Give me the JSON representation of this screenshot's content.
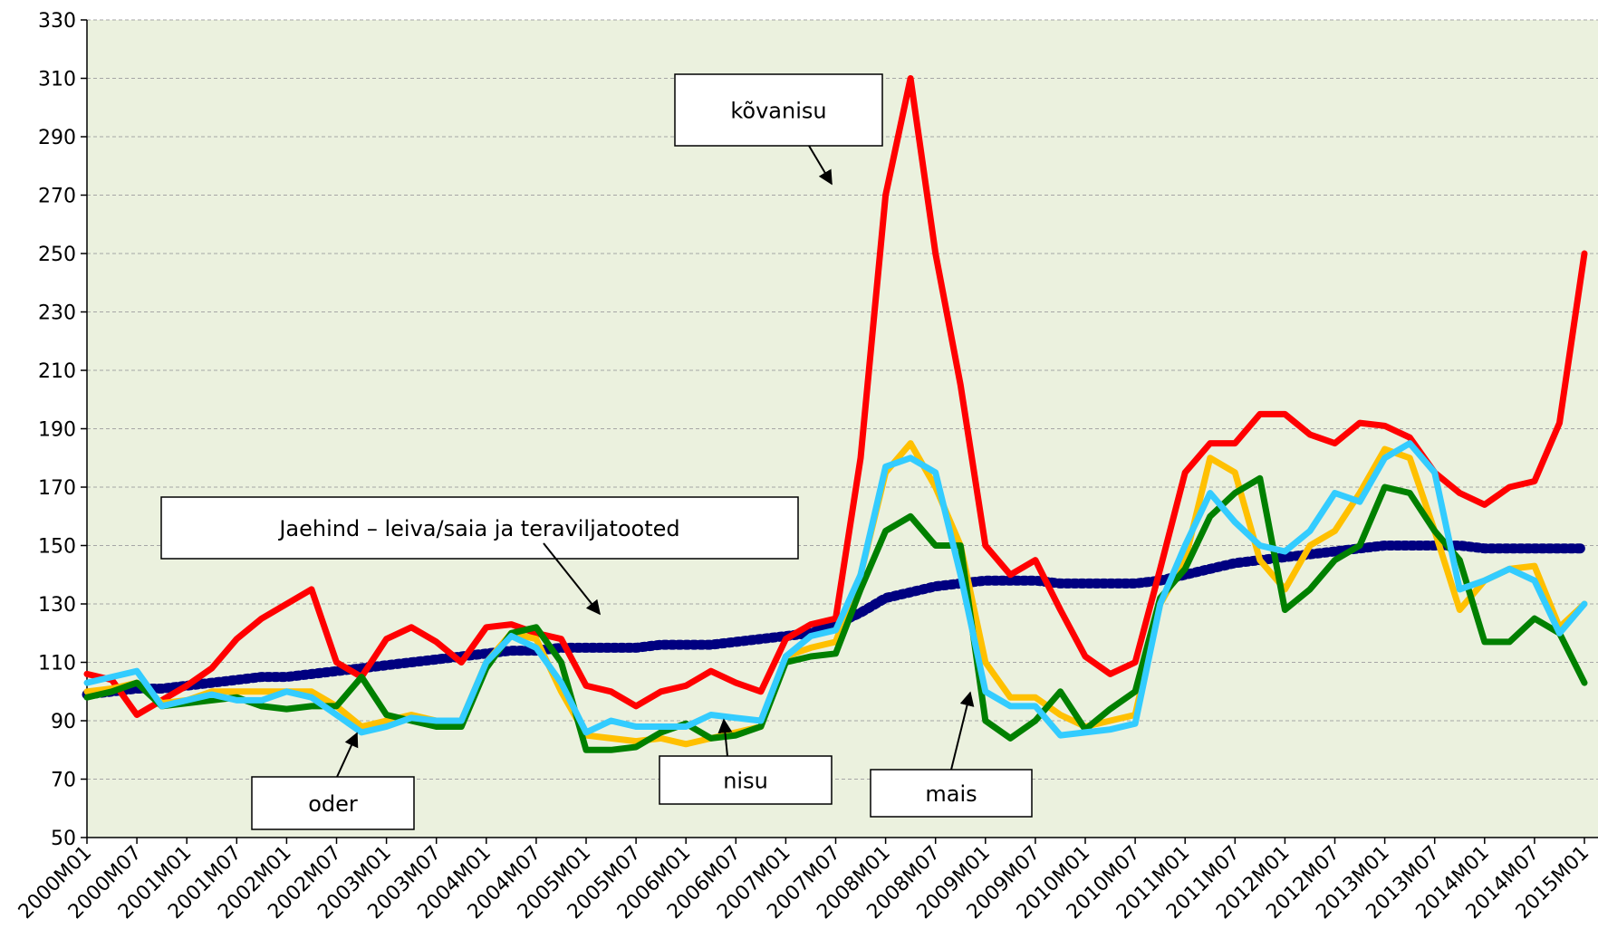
{
  "chart_data": {
    "type": "line",
    "categories": [
      "2000M01",
      null,
      "2000M07",
      null,
      "2001M01",
      null,
      "2001M07",
      null,
      "2002M01",
      null,
      "2002M07",
      null,
      "2003M01",
      null,
      "2003M07",
      null,
      "2004M01",
      null,
      "2004M07",
      null,
      "2005M01",
      null,
      "2005M07",
      null,
      "2006M01",
      null,
      "2006M07",
      null,
      "2007M01",
      null,
      "2007M07",
      null,
      "2008M01",
      null,
      "2008M07",
      null,
      "2009M01",
      null,
      "2009M07",
      null,
      "2010M01",
      null,
      "2010M07",
      null,
      "2011M01",
      null,
      "2011M07",
      null,
      "2012M01",
      null,
      "2012M07",
      null,
      "2013M01",
      null,
      "2013M07",
      null,
      "2014M01",
      null,
      "2014M07",
      null,
      "2015M01"
    ],
    "series": [
      {
        "name": "Jaehind – leiva/saia ja teraviljatooted",
        "color": "#000080",
        "values": [
          99,
          100,
          101,
          101,
          102,
          103,
          104,
          105,
          105,
          106,
          107,
          108,
          109,
          110,
          111,
          112,
          113,
          114,
          114,
          115,
          115,
          115,
          115,
          116,
          116,
          116,
          117,
          118,
          119,
          120,
          123,
          127,
          132,
          134,
          136,
          137,
          138,
          138,
          138,
          137,
          137,
          137,
          137,
          138,
          140,
          142,
          144,
          145,
          146,
          147,
          148,
          149,
          150,
          150,
          150,
          150,
          149,
          149,
          149,
          149,
          149
        ]
      },
      {
        "name": "kõvanisu",
        "color": "#ff0000",
        "values": [
          106,
          104,
          92,
          97,
          102,
          108,
          118,
          125,
          130,
          135,
          110,
          105,
          118,
          122,
          117,
          110,
          122,
          123,
          120,
          118,
          102,
          100,
          95,
          100,
          102,
          107,
          103,
          100,
          118,
          123,
          125,
          180,
          270,
          310,
          250,
          205,
          150,
          140,
          145,
          128,
          112,
          106,
          110,
          142,
          175,
          185,
          185,
          195,
          195,
          188,
          185,
          192,
          191,
          187,
          175,
          168,
          164,
          170,
          172,
          192,
          250
        ]
      },
      {
        "name": "nisu",
        "color": "#ffc000",
        "values": [
          100,
          101,
          103,
          96,
          97,
          100,
          100,
          100,
          100,
          100,
          95,
          88,
          90,
          92,
          90,
          90,
          110,
          120,
          118,
          100,
          85,
          84,
          83,
          84,
          82,
          84,
          86,
          88,
          112,
          115,
          117,
          140,
          175,
          185,
          170,
          150,
          110,
          98,
          98,
          92,
          88,
          90,
          92,
          130,
          145,
          180,
          175,
          145,
          135,
          150,
          155,
          168,
          183,
          180,
          155,
          128,
          138,
          142,
          143,
          122,
          130
        ]
      },
      {
        "name": "mais",
        "color": "#008000",
        "values": [
          98,
          100,
          103,
          95,
          96,
          97,
          98,
          95,
          94,
          95,
          95,
          105,
          92,
          90,
          88,
          88,
          108,
          120,
          122,
          110,
          80,
          80,
          81,
          86,
          89,
          84,
          85,
          88,
          110,
          112,
          113,
          135,
          155,
          160,
          150,
          150,
          90,
          84,
          90,
          100,
          87,
          94,
          100,
          132,
          142,
          160,
          168,
          173,
          128,
          135,
          145,
          150,
          170,
          168,
          155,
          145,
          117,
          117,
          125,
          120,
          103
        ]
      },
      {
        "name": "oder",
        "color": "#33ccff",
        "values": [
          103,
          105,
          107,
          95,
          97,
          99,
          97,
          97,
          100,
          98,
          92,
          86,
          88,
          91,
          90,
          90,
          110,
          119,
          115,
          103,
          86,
          90,
          88,
          88,
          88,
          92,
          91,
          90,
          112,
          119,
          121,
          140,
          177,
          180,
          175,
          140,
          100,
          95,
          95,
          85,
          86,
          87,
          89,
          130,
          150,
          168,
          158,
          150,
          148,
          155,
          168,
          165,
          180,
          185,
          175,
          135,
          138,
          142,
          138,
          120,
          130
        ]
      }
    ],
    "ylim": [
      50,
      330
    ],
    "yticks": [
      50,
      70,
      90,
      110,
      130,
      150,
      170,
      190,
      210,
      230,
      250,
      270,
      290,
      310,
      330
    ],
    "grid": true
  }
}
